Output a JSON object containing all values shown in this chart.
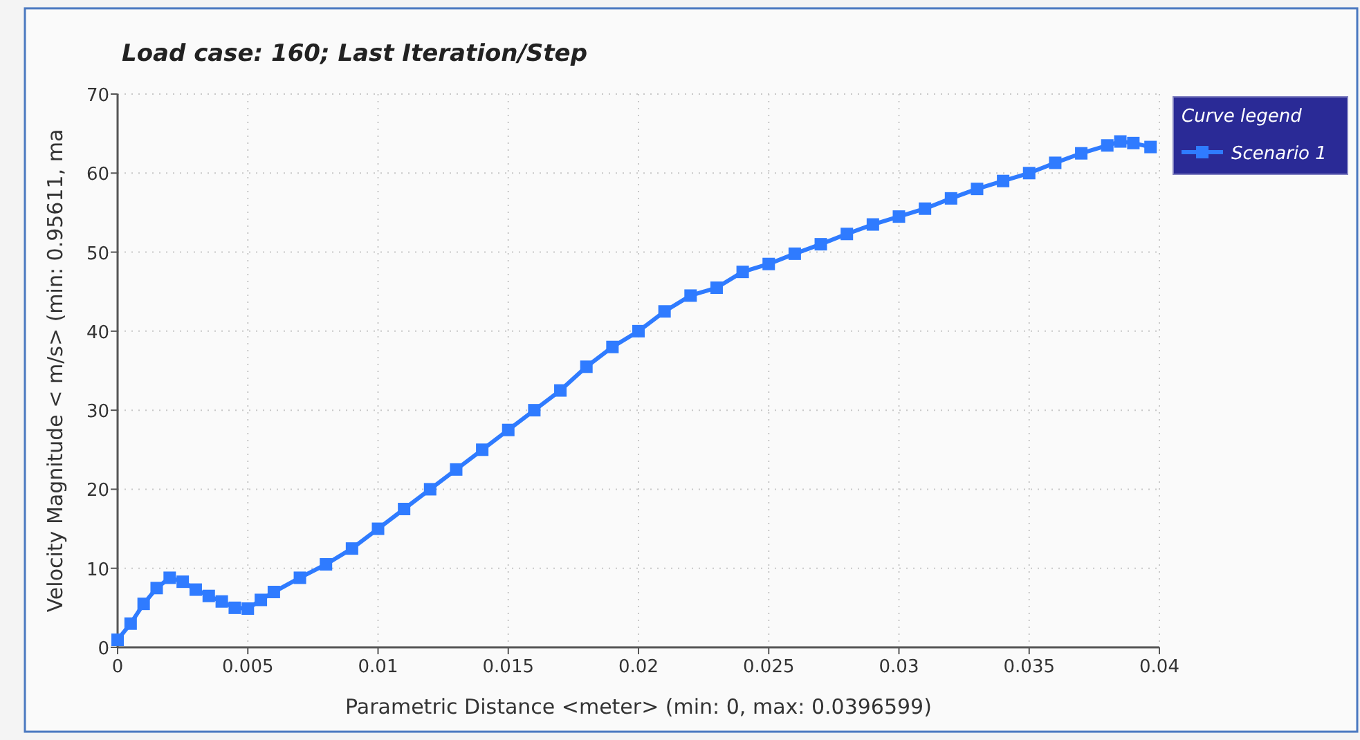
{
  "chart_data": {
    "type": "line",
    "title": "Load case: 160; Last Iteration/Step",
    "xlabel": "Parametric Distance  <meter>  (min: 0, max: 0.0396599)",
    "ylabel": "Velocity Magnitude < m/s>  (min: 0.95611, ma",
    "legend_title": "Curve legend",
    "legend": "top right",
    "grid": true,
    "marker": "square",
    "line_style": "solid",
    "xlim": [
      0,
      0.04
    ],
    "ylim": [
      0,
      70
    ],
    "xticks": [
      0,
      0.005,
      0.01,
      0.015,
      0.02,
      0.025,
      0.03,
      0.035,
      0.04
    ],
    "yticks": [
      0,
      10,
      20,
      30,
      40,
      50,
      60,
      70
    ],
    "series": [
      {
        "name": "Scenario 1",
        "color": "#2f7bff",
        "x": [
          0,
          0.0005,
          0.001,
          0.0015,
          0.002,
          0.0025,
          0.003,
          0.0035,
          0.004,
          0.0045,
          0.005,
          0.0055,
          0.006,
          0.007,
          0.008,
          0.009,
          0.01,
          0.011,
          0.012,
          0.013,
          0.014,
          0.015,
          0.016,
          0.017,
          0.018,
          0.019,
          0.02,
          0.021,
          0.022,
          0.023,
          0.024,
          0.025,
          0.026,
          0.027,
          0.028,
          0.029,
          0.03,
          0.031,
          0.032,
          0.033,
          0.034,
          0.035,
          0.036,
          0.037,
          0.038,
          0.0385,
          0.039,
          0.0396599
        ],
        "values": [
          0.96,
          3,
          5.5,
          7.5,
          8.8,
          8.3,
          7.3,
          6.5,
          5.8,
          5,
          4.9,
          6,
          7,
          8.8,
          10.5,
          12.5,
          15,
          17.5,
          20,
          22.5,
          25,
          27.5,
          30,
          32.5,
          35.5,
          38,
          40,
          42.5,
          44.5,
          45.5,
          47.5,
          48.5,
          49.8,
          51,
          52.3,
          53.5,
          54.5,
          55.5,
          56.8,
          58,
          59,
          60,
          61.3,
          62.5,
          63.5,
          64,
          63.8,
          63.3
        ]
      }
    ]
  }
}
